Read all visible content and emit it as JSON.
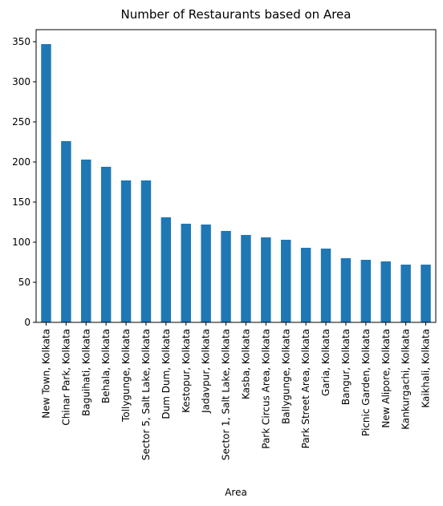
{
  "chart_data": {
    "type": "bar",
    "title": "Number of Restaurants based on Area",
    "xlabel": "Area",
    "ylabel": "",
    "ylim": [
      0,
      365
    ],
    "yticks": [
      0,
      50,
      100,
      150,
      200,
      250,
      300,
      350
    ],
    "grid": false,
    "legend": "none",
    "bar_color": "#1f77b4",
    "categories": [
      "New Town, Kolkata",
      "Chinar Park, Kolkata",
      "Baguihati, Kolkata",
      "Behala, Kolkata",
      "Tollygunge, Kolkata",
      "Sector 5, Salt Lake, Kolkata",
      "Dum Dum, Kolkata",
      "Kestopur, Kolkata",
      "Jadavpur, Kolkata",
      "Sector 1, Salt Lake, Kolkata",
      "Kasba, Kolkata",
      "Park Circus Area, Kolkata",
      "Ballygunge, Kolkata",
      "Park Street Area, Kolkata",
      "Garia, Kolkata",
      "Bangur, Kolkata",
      "Picnic Garden, Kolkata",
      "New Alipore, Kolkata",
      "Kankurgachi, Kolkata",
      "Kaikhali, Kolkata"
    ],
    "values": [
      347,
      226,
      203,
      194,
      177,
      177,
      131,
      123,
      122,
      114,
      109,
      106,
      103,
      93,
      92,
      80,
      78,
      76,
      72,
      72
    ]
  }
}
